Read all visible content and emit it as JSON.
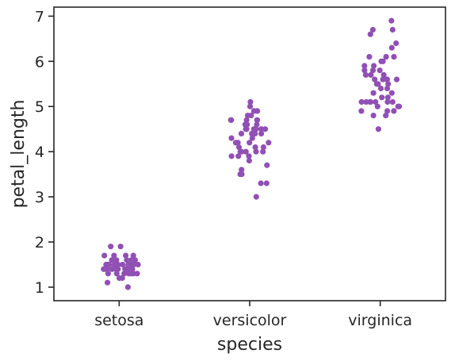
{
  "chart_data": {
    "type": "scatter",
    "title": "",
    "xlabel": "species",
    "ylabel": "petal_length",
    "categories": [
      "setosa",
      "versicolor",
      "virginica"
    ],
    "ylim": [
      0.7,
      7.2
    ],
    "yticks": [
      1,
      2,
      3,
      4,
      5,
      6,
      7
    ],
    "grid": false,
    "legend": "none",
    "point_color": "#9050b4",
    "series": [
      {
        "category": "setosa",
        "values": [
          1.4,
          1.4,
          1.3,
          1.5,
          1.4,
          1.7,
          1.4,
          1.5,
          1.4,
          1.5,
          1.5,
          1.6,
          1.4,
          1.1,
          1.2,
          1.5,
          1.3,
          1.4,
          1.7,
          1.5,
          1.7,
          1.5,
          1.0,
          1.7,
          1.9,
          1.6,
          1.6,
          1.5,
          1.4,
          1.6,
          1.6,
          1.5,
          1.5,
          1.4,
          1.5,
          1.2,
          1.3,
          1.4,
          1.3,
          1.5,
          1.3,
          1.3,
          1.3,
          1.6,
          1.9,
          1.4,
          1.6,
          1.4,
          1.5,
          1.4
        ]
      },
      {
        "category": "versicolor",
        "values": [
          4.7,
          4.5,
          4.9,
          4.0,
          4.6,
          4.5,
          4.7,
          3.3,
          4.6,
          3.9,
          3.5,
          4.2,
          4.0,
          4.7,
          3.6,
          4.4,
          4.5,
          4.1,
          4.5,
          3.9,
          4.8,
          4.0,
          4.9,
          4.7,
          4.3,
          4.4,
          4.8,
          5.0,
          4.5,
          3.5,
          3.8,
          3.7,
          3.9,
          5.1,
          4.5,
          4.5,
          4.7,
          4.4,
          4.1,
          4.0,
          4.4,
          4.6,
          4.0,
          3.3,
          4.2,
          4.2,
          4.2,
          4.3,
          3.0,
          4.1
        ]
      },
      {
        "category": "virginica",
        "values": [
          6.0,
          5.1,
          5.9,
          5.6,
          5.8,
          6.6,
          4.5,
          6.3,
          5.8,
          6.1,
          5.1,
          5.3,
          5.5,
          5.0,
          5.1,
          5.3,
          5.5,
          6.7,
          6.9,
          5.0,
          5.7,
          4.9,
          6.7,
          4.9,
          5.7,
          6.0,
          4.8,
          4.9,
          5.6,
          5.8,
          6.1,
          6.4,
          5.6,
          5.1,
          5.6,
          6.1,
          5.6,
          5.5,
          4.8,
          5.4,
          5.6,
          5.1,
          5.1,
          5.9,
          5.7,
          5.2,
          5.0,
          5.2,
          5.4,
          5.1
        ]
      }
    ]
  }
}
